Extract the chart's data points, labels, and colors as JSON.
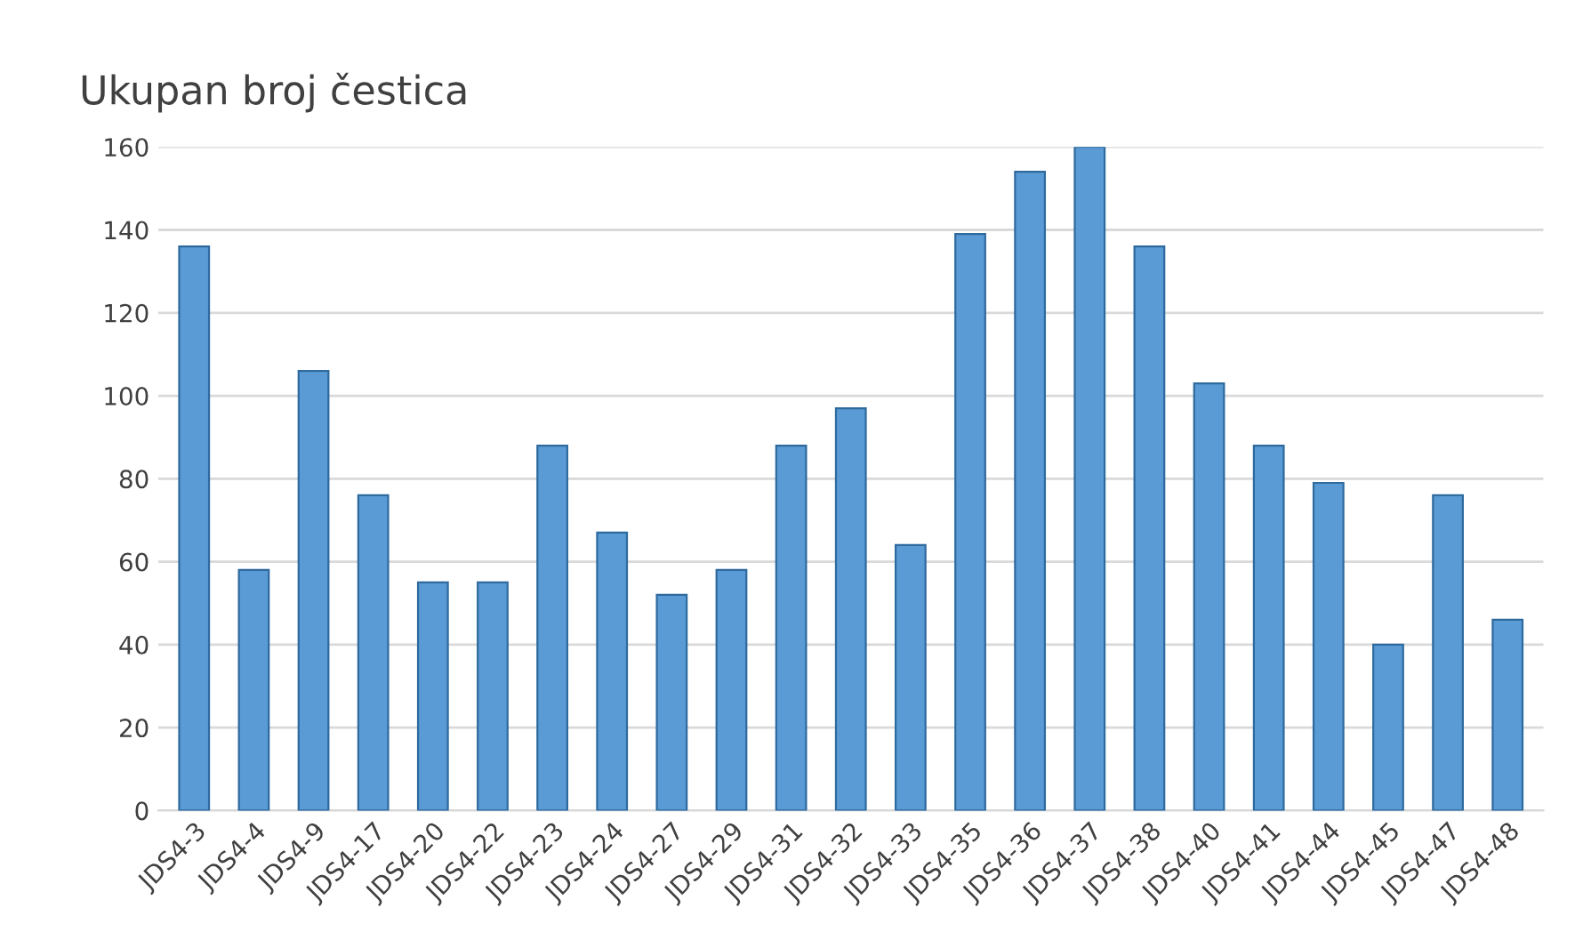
{
  "chart_data": {
    "type": "bar",
    "title": "Ukupan broj čestica",
    "categories": [
      "JDS4-3",
      "JDS4-4",
      "JDS4-9",
      "JDS4-17",
      "JDS4-20",
      "JDS4-22",
      "JDS4-23",
      "JDS4-24",
      "JDS4-27",
      "JDS4-29",
      "JDS4-31",
      "JDS4-32",
      "JDS4-33",
      "JDS4-35",
      "JDS4-36",
      "JDS4-37",
      "JDS4-38",
      "JDS4-40",
      "JDS4-41",
      "JDS4-44",
      "JDS4-45",
      "JDS4-47",
      "JDS4-48"
    ],
    "values": [
      136,
      58,
      106,
      76,
      55,
      55,
      88,
      67,
      52,
      58,
      88,
      97,
      64,
      139,
      154,
      160,
      136,
      103,
      88,
      79,
      40,
      76,
      46
    ],
    "color": "#5b9bd5",
    "ylim": [
      0,
      160
    ],
    "yticks": [
      0,
      20,
      40,
      60,
      80,
      100,
      120,
      140,
      160
    ],
    "grid": "y"
  }
}
